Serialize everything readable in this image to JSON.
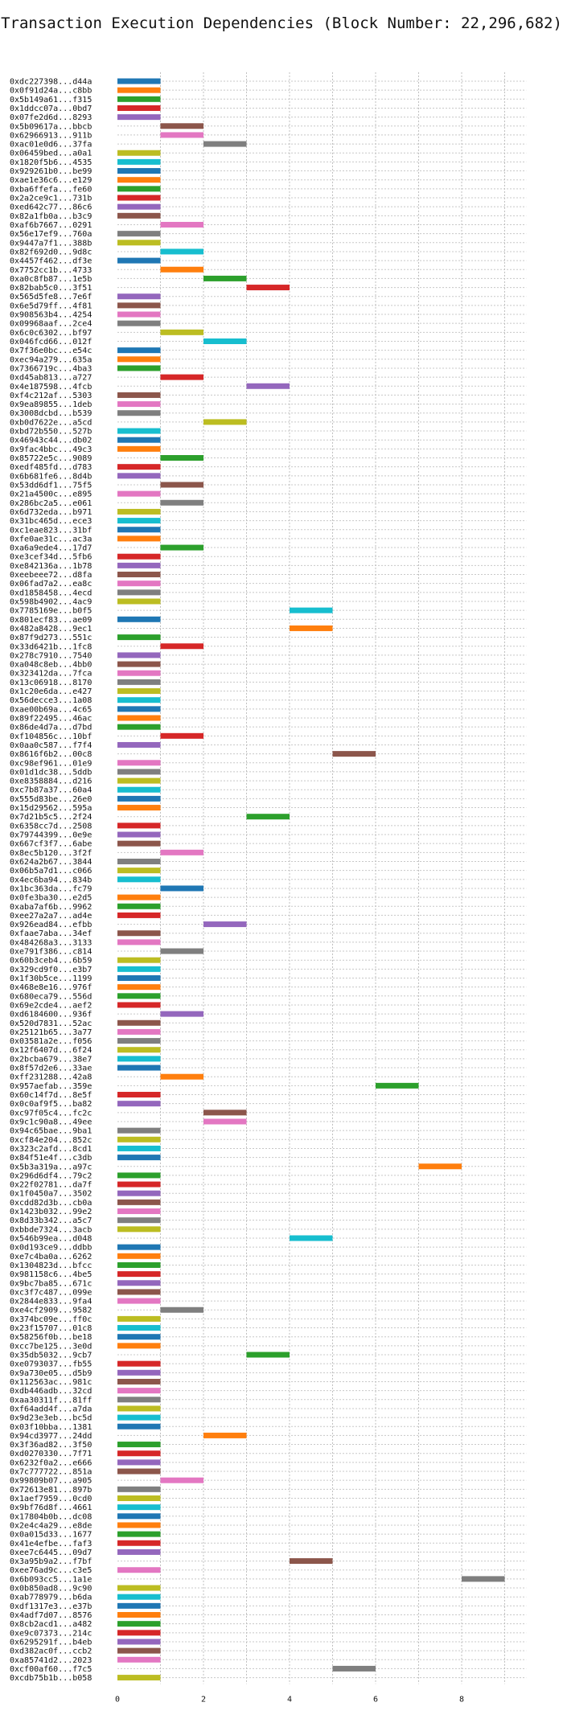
{
  "chart_data": {
    "type": "gantt-bar",
    "title": "Transaction Execution Dependencies (Block Number: 22,296,682)",
    "xlim": [
      0,
      9.5
    ],
    "x_ticks": [
      0,
      2,
      4,
      6,
      8
    ],
    "grid": true,
    "palette": [
      "#1f77b4",
      "#ff7f0e",
      "#2ca02c",
      "#d62728",
      "#9467bd",
      "#8c564b",
      "#e377c2",
      "#7f7f7f",
      "#bcbd22",
      "#17becf"
    ],
    "transactions": [
      {
        "label": "0xdc227398...d44a",
        "start": 0,
        "end": 1
      },
      {
        "label": "0x0f91d24a...c8bb",
        "start": 0,
        "end": 1
      },
      {
        "label": "0x5b149a61...f315",
        "start": 0,
        "end": 1
      },
      {
        "label": "0x1ddcc07a...0bd7",
        "start": 0,
        "end": 1
      },
      {
        "label": "0x07fe2d6d...8293",
        "start": 0,
        "end": 1
      },
      {
        "label": "0x5b09617a...bbcb",
        "start": 1,
        "end": 2
      },
      {
        "label": "0x62966913...911b",
        "start": 1,
        "end": 2
      },
      {
        "label": "0xac01e0d6...37fa",
        "start": 2,
        "end": 3
      },
      {
        "label": "0x06459bed...a0a1",
        "start": 0,
        "end": 1
      },
      {
        "label": "0x1820f5b6...4535",
        "start": 0,
        "end": 1
      },
      {
        "label": "0x929261b0...be99",
        "start": 0,
        "end": 1
      },
      {
        "label": "0xae1e36c6...e129",
        "start": 0,
        "end": 1
      },
      {
        "label": "0xba6ffefa...fe60",
        "start": 0,
        "end": 1
      },
      {
        "label": "0x2a2ce9c1...731b",
        "start": 0,
        "end": 1
      },
      {
        "label": "0xed642c77...86c6",
        "start": 0,
        "end": 1
      },
      {
        "label": "0x82a1fb0a...b3c9",
        "start": 0,
        "end": 1
      },
      {
        "label": "0xaf6b7667...0291",
        "start": 1,
        "end": 2
      },
      {
        "label": "0x56e17ef9...760a",
        "start": 0,
        "end": 1
      },
      {
        "label": "0x9447a7f1...388b",
        "start": 0,
        "end": 1
      },
      {
        "label": "0x82f692d0...9d8c",
        "start": 1,
        "end": 2
      },
      {
        "label": "0x4457f462...df3e",
        "start": 0,
        "end": 1
      },
      {
        "label": "0x7752cc1b...4733",
        "start": 1,
        "end": 2
      },
      {
        "label": "0xa0c8fb87...1e5b",
        "start": 2,
        "end": 3
      },
      {
        "label": "0x82bab5c0...3f51",
        "start": 3,
        "end": 4
      },
      {
        "label": "0x565d5fe8...7e6f",
        "start": 0,
        "end": 1
      },
      {
        "label": "0x6e5d79ff...4f81",
        "start": 0,
        "end": 1
      },
      {
        "label": "0x908563b4...4254",
        "start": 0,
        "end": 1
      },
      {
        "label": "0x09968aaf...2ce4",
        "start": 0,
        "end": 1
      },
      {
        "label": "0x6c0c6302...bf97",
        "start": 1,
        "end": 2
      },
      {
        "label": "0x046fcd66...012f",
        "start": 2,
        "end": 3
      },
      {
        "label": "0x7f36e0bc...e54c",
        "start": 0,
        "end": 1
      },
      {
        "label": "0xec94a279...635a",
        "start": 0,
        "end": 1
      },
      {
        "label": "0x7366719c...4ba3",
        "start": 0,
        "end": 1
      },
      {
        "label": "0xd45ab813...a727",
        "start": 1,
        "end": 2
      },
      {
        "label": "0x4e187598...4fcb",
        "start": 3,
        "end": 4
      },
      {
        "label": "0xf4c212af...5303",
        "start": 0,
        "end": 1
      },
      {
        "label": "0x9ea89855...1deb",
        "start": 0,
        "end": 1
      },
      {
        "label": "0x3008dcbd...b539",
        "start": 0,
        "end": 1
      },
      {
        "label": "0xb0d7622e...a5cd",
        "start": 2,
        "end": 3
      },
      {
        "label": "0xbd72b550...527b",
        "start": 0,
        "end": 1
      },
      {
        "label": "0x46943c44...db02",
        "start": 0,
        "end": 1
      },
      {
        "label": "0x9fac4bbc...49c3",
        "start": 0,
        "end": 1
      },
      {
        "label": "0x85722e5c...9089",
        "start": 1,
        "end": 2
      },
      {
        "label": "0xedf485fd...d783",
        "start": 0,
        "end": 1
      },
      {
        "label": "0x6b681fe6...8d4b",
        "start": 0,
        "end": 1
      },
      {
        "label": "0x53dd6df1...75f5",
        "start": 1,
        "end": 2
      },
      {
        "label": "0x21a4500c...e895",
        "start": 0,
        "end": 1
      },
      {
        "label": "0x286bc2a5...e061",
        "start": 1,
        "end": 2
      },
      {
        "label": "0x6d732eda...b971",
        "start": 0,
        "end": 1
      },
      {
        "label": "0x31bc465d...ece3",
        "start": 0,
        "end": 1
      },
      {
        "label": "0xc1eae823...31bf",
        "start": 0,
        "end": 1
      },
      {
        "label": "0xfe0ae31c...ac3a",
        "start": 0,
        "end": 1
      },
      {
        "label": "0xa6a9ede4...17d7",
        "start": 1,
        "end": 2
      },
      {
        "label": "0xe3cef34d...5fb6",
        "start": 0,
        "end": 1
      },
      {
        "label": "0xe842136a...1b78",
        "start": 0,
        "end": 1
      },
      {
        "label": "0xeebeee72...d8fa",
        "start": 0,
        "end": 1
      },
      {
        "label": "0x06fad7a2...ea8c",
        "start": 0,
        "end": 1
      },
      {
        "label": "0xd1858458...4ecd",
        "start": 0,
        "end": 1
      },
      {
        "label": "0x598b4902...4ac9",
        "start": 0,
        "end": 1
      },
      {
        "label": "0x7785169e...b0f5",
        "start": 4,
        "end": 5
      },
      {
        "label": "0x801ecf83...ae09",
        "start": 0,
        "end": 1
      },
      {
        "label": "0x482a8428...9ec1",
        "start": 4,
        "end": 5
      },
      {
        "label": "0x87f9d273...551c",
        "start": 0,
        "end": 1
      },
      {
        "label": "0x33d6421b...1fc8",
        "start": 1,
        "end": 2
      },
      {
        "label": "0x278c7910...7540",
        "start": 0,
        "end": 1
      },
      {
        "label": "0xa048c8eb...4bb0",
        "start": 0,
        "end": 1
      },
      {
        "label": "0x323412da...7fca",
        "start": 0,
        "end": 1
      },
      {
        "label": "0x13c06918...8170",
        "start": 0,
        "end": 1
      },
      {
        "label": "0x1c20e6da...e427",
        "start": 0,
        "end": 1
      },
      {
        "label": "0x56decce3...1a08",
        "start": 0,
        "end": 1
      },
      {
        "label": "0xae00b69a...4c65",
        "start": 0,
        "end": 1
      },
      {
        "label": "0x89f22495...46ac",
        "start": 0,
        "end": 1
      },
      {
        "label": "0x86de4d7a...d7bd",
        "start": 0,
        "end": 1
      },
      {
        "label": "0xf104856c...10bf",
        "start": 1,
        "end": 2
      },
      {
        "label": "0x0aa0c587...f7f4",
        "start": 0,
        "end": 1
      },
      {
        "label": "0x8616f6b2...00c8",
        "start": 5,
        "end": 6
      },
      {
        "label": "0xc98ef961...01e9",
        "start": 0,
        "end": 1
      },
      {
        "label": "0x01d1dc38...5ddb",
        "start": 0,
        "end": 1
      },
      {
        "label": "0xe8358884...d216",
        "start": 0,
        "end": 1
      },
      {
        "label": "0xc7b87a37...60a4",
        "start": 0,
        "end": 1
      },
      {
        "label": "0x555d83be...26e0",
        "start": 0,
        "end": 1
      },
      {
        "label": "0x15d29562...595a",
        "start": 0,
        "end": 1
      },
      {
        "label": "0x7d21b5c5...2f24",
        "start": 3,
        "end": 4
      },
      {
        "label": "0x6358cc7d...2508",
        "start": 0,
        "end": 1
      },
      {
        "label": "0x79744399...0e9e",
        "start": 0,
        "end": 1
      },
      {
        "label": "0x667cf3f7...6abe",
        "start": 0,
        "end": 1
      },
      {
        "label": "0x8ec5b120...3f2f",
        "start": 1,
        "end": 2
      },
      {
        "label": "0x624a2b67...3844",
        "start": 0,
        "end": 1
      },
      {
        "label": "0x06b5a7d1...c066",
        "start": 0,
        "end": 1
      },
      {
        "label": "0x4ec6ba94...834b",
        "start": 0,
        "end": 1
      },
      {
        "label": "0x1bc363da...fc79",
        "start": 1,
        "end": 2
      },
      {
        "label": "0x0fe3ba30...e2d5",
        "start": 0,
        "end": 1
      },
      {
        "label": "0xaba7af6b...9962",
        "start": 0,
        "end": 1
      },
      {
        "label": "0xee27a2a7...ad4e",
        "start": 0,
        "end": 1
      },
      {
        "label": "0x926ead84...efbb",
        "start": 2,
        "end": 3
      },
      {
        "label": "0xfaae7aba...34ef",
        "start": 0,
        "end": 1
      },
      {
        "label": "0x484268a3...3133",
        "start": 0,
        "end": 1
      },
      {
        "label": "0xe791f386...c814",
        "start": 1,
        "end": 2
      },
      {
        "label": "0x60b3ceb4...6b59",
        "start": 0,
        "end": 1
      },
      {
        "label": "0x329cd9f0...e3b7",
        "start": 0,
        "end": 1
      },
      {
        "label": "0x1f30b5ce...1199",
        "start": 0,
        "end": 1
      },
      {
        "label": "0x468e8e16...976f",
        "start": 0,
        "end": 1
      },
      {
        "label": "0x680eca79...556d",
        "start": 0,
        "end": 1
      },
      {
        "label": "0x69e2cde4...aef2",
        "start": 0,
        "end": 1
      },
      {
        "label": "0xd6184600...936f",
        "start": 1,
        "end": 2
      },
      {
        "label": "0x520d7831...52ac",
        "start": 0,
        "end": 1
      },
      {
        "label": "0x25121b65...3a77",
        "start": 0,
        "end": 1
      },
      {
        "label": "0x03581a2e...f056",
        "start": 0,
        "end": 1
      },
      {
        "label": "0x12f6407d...6f24",
        "start": 0,
        "end": 1
      },
      {
        "label": "0x2bcba679...38e7",
        "start": 0,
        "end": 1
      },
      {
        "label": "0x8f57d2e6...33ae",
        "start": 0,
        "end": 1
      },
      {
        "label": "0xff231288...42a8",
        "start": 1,
        "end": 2
      },
      {
        "label": "0x957aefab...359e",
        "start": 6,
        "end": 7
      },
      {
        "label": "0x60c14f7d...8e5f",
        "start": 0,
        "end": 1
      },
      {
        "label": "0x0c0af9f5...ba82",
        "start": 0,
        "end": 1
      },
      {
        "label": "0xc97f05c4...fc2c",
        "start": 2,
        "end": 3
      },
      {
        "label": "0x9c1c90a8...49ee",
        "start": 2,
        "end": 3
      },
      {
        "label": "0x94c65bae...9ba1",
        "start": 0,
        "end": 1
      },
      {
        "label": "0xcf84e204...852c",
        "start": 0,
        "end": 1
      },
      {
        "label": "0x323c2afd...8cd1",
        "start": 0,
        "end": 1
      },
      {
        "label": "0x84f51e4f...c3db",
        "start": 0,
        "end": 1
      },
      {
        "label": "0x5b3a319a...a97c",
        "start": 7,
        "end": 8
      },
      {
        "label": "0x296d6df4...79c2",
        "start": 0,
        "end": 1
      },
      {
        "label": "0x22f02781...da7f",
        "start": 0,
        "end": 1
      },
      {
        "label": "0x1f0450a7...3502",
        "start": 0,
        "end": 1
      },
      {
        "label": "0xcdd82d3b...cb0a",
        "start": 0,
        "end": 1
      },
      {
        "label": "0x1423b032...99e2",
        "start": 0,
        "end": 1
      },
      {
        "label": "0x8d33b342...a5c7",
        "start": 0,
        "end": 1
      },
      {
        "label": "0xbbde7324...3acb",
        "start": 0,
        "end": 1
      },
      {
        "label": "0x546b99ea...d048",
        "start": 4,
        "end": 5
      },
      {
        "label": "0x0d193ce9...ddbb",
        "start": 0,
        "end": 1
      },
      {
        "label": "0xe7c4ba0a...6262",
        "start": 0,
        "end": 1
      },
      {
        "label": "0x1304823d...bfcc",
        "start": 0,
        "end": 1
      },
      {
        "label": "0x981158c6...4be5",
        "start": 0,
        "end": 1
      },
      {
        "label": "0x9bc7ba85...671c",
        "start": 0,
        "end": 1
      },
      {
        "label": "0xc3f7c487...099e",
        "start": 0,
        "end": 1
      },
      {
        "label": "0x2844e833...9fa4",
        "start": 0,
        "end": 1
      },
      {
        "label": "0xe4cf2909...9582",
        "start": 1,
        "end": 2
      },
      {
        "label": "0x374bc09e...ff0c",
        "start": 0,
        "end": 1
      },
      {
        "label": "0x23f15707...01c8",
        "start": 0,
        "end": 1
      },
      {
        "label": "0x58256f0b...be18",
        "start": 0,
        "end": 1
      },
      {
        "label": "0xcc7be125...3e0d",
        "start": 0,
        "end": 1
      },
      {
        "label": "0x35db5032...9cb7",
        "start": 3,
        "end": 4
      },
      {
        "label": "0xe0793037...fb55",
        "start": 0,
        "end": 1
      },
      {
        "label": "0x9a730e05...d5b9",
        "start": 0,
        "end": 1
      },
      {
        "label": "0x112563ac...981c",
        "start": 0,
        "end": 1
      },
      {
        "label": "0xdb446adb...32cd",
        "start": 0,
        "end": 1
      },
      {
        "label": "0xaa30311f...81ff",
        "start": 0,
        "end": 1
      },
      {
        "label": "0xf64add4f...a7da",
        "start": 0,
        "end": 1
      },
      {
        "label": "0x9d23e3eb...bc5d",
        "start": 0,
        "end": 1
      },
      {
        "label": "0x03f10bba...1381",
        "start": 0,
        "end": 1
      },
      {
        "label": "0x94cd3977...24dd",
        "start": 2,
        "end": 3
      },
      {
        "label": "0x3f36ad82...3f50",
        "start": 0,
        "end": 1
      },
      {
        "label": "0xd0270330...7f71",
        "start": 0,
        "end": 1
      },
      {
        "label": "0x6232f0a2...e666",
        "start": 0,
        "end": 1
      },
      {
        "label": "0x7c777722...851a",
        "start": 0,
        "end": 1
      },
      {
        "label": "0x99809b07...a905",
        "start": 1,
        "end": 2
      },
      {
        "label": "0x72613e81...897b",
        "start": 0,
        "end": 1
      },
      {
        "label": "0x1aef7959...0cd0",
        "start": 0,
        "end": 1
      },
      {
        "label": "0x9bf76d8f...4661",
        "start": 0,
        "end": 1
      },
      {
        "label": "0x17804b0b...dc08",
        "start": 0,
        "end": 1
      },
      {
        "label": "0x2e4c4a29...e8de",
        "start": 0,
        "end": 1
      },
      {
        "label": "0x0a015d33...1677",
        "start": 0,
        "end": 1
      },
      {
        "label": "0x41e4efbe...faf3",
        "start": 0,
        "end": 1
      },
      {
        "label": "0xee7c6445...09d7",
        "start": 0,
        "end": 1
      },
      {
        "label": "0x3a95b9a2...f7bf",
        "start": 4,
        "end": 5
      },
      {
        "label": "0xee76ad9c...c3e5",
        "start": 0,
        "end": 1
      },
      {
        "label": "0x6b093cc5...1a1e",
        "start": 8,
        "end": 9
      },
      {
        "label": "0x0b850ad8...9c90",
        "start": 0,
        "end": 1
      },
      {
        "label": "0xab778979...b6da",
        "start": 0,
        "end": 1
      },
      {
        "label": "0xdf1317e3...e37b",
        "start": 0,
        "end": 1
      },
      {
        "label": "0x4adf7d07...8576",
        "start": 0,
        "end": 1
      },
      {
        "label": "0x8cb2acd1...a482",
        "start": 0,
        "end": 1
      },
      {
        "label": "0xe9c07373...214c",
        "start": 0,
        "end": 1
      },
      {
        "label": "0x6295291f...b4eb",
        "start": 0,
        "end": 1
      },
      {
        "label": "0xd382ac0f...ccb2",
        "start": 0,
        "end": 1
      },
      {
        "label": "0xa85741d2...2023",
        "start": 0,
        "end": 1
      },
      {
        "label": "0xcf00af60...f7c5",
        "start": 5,
        "end": 6
      },
      {
        "label": "0xcdb75b1b...b058",
        "start": 0,
        "end": 1
      }
    ]
  }
}
